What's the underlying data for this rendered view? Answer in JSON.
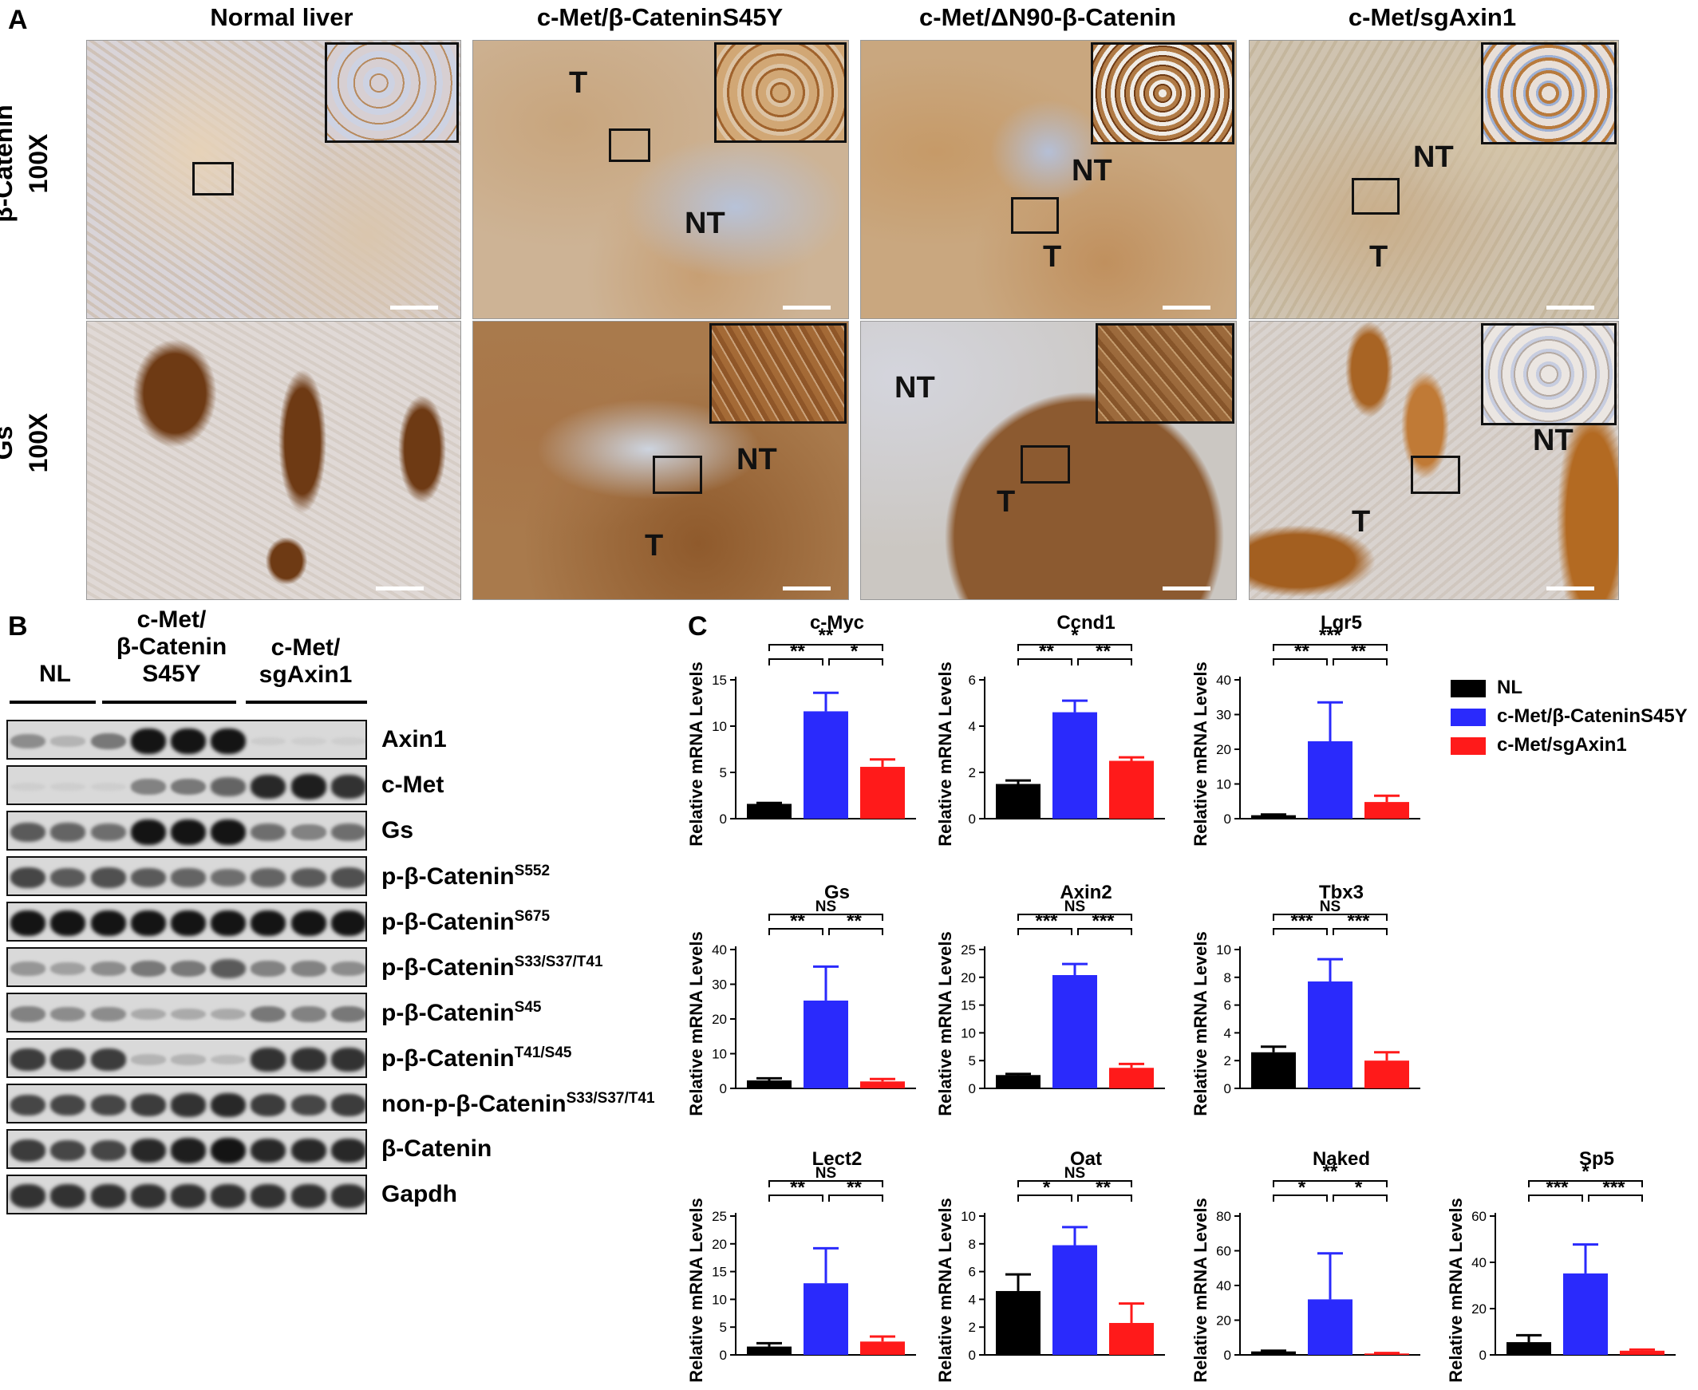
{
  "panel_a": {
    "letter": "A",
    "columns": [
      "Normal liver",
      "c-Met/β-CateninS45Y",
      "c-Met/ΔN90-β-Catenin",
      "c-Met/sgAxin1"
    ],
    "rows": [
      {
        "stain": "β-Catenin",
        "mag": "100X"
      },
      {
        "stain": "Gs",
        "mag": "100X"
      }
    ],
    "region_labels": {
      "r1c2_t": "T",
      "r1c2_nt": "NT",
      "r1c3_nt": "NT",
      "r1c3_t": "T",
      "r1c4_nt": "NT",
      "r1c4_t": "T",
      "r2c2_nt": "NT",
      "r2c2_t": "T",
      "r2c3_nt": "NT",
      "r2c3_t": "T",
      "r2c4_nt": "NT",
      "r2c4_t": "T"
    },
    "colors": {
      "tissue_blue": "#d8dbe6",
      "stain_brown": "#a8662b",
      "dark_brown": "#6e3a14"
    }
  },
  "panel_b": {
    "letter": "B",
    "groups": [
      {
        "label": "NL"
      },
      {
        "label_1": "c-Met/",
        "label_2": "β-Catenin",
        "label_3": "S45Y"
      },
      {
        "label_1": "c-Met/",
        "label_2": "sgAxin1"
      }
    ],
    "blots": [
      {
        "name": "Axin1",
        "sup": "",
        "intensity": [
          0.35,
          0.15,
          0.45,
          0.95,
          0.95,
          0.95,
          0.03,
          0.02,
          0.02
        ]
      },
      {
        "name": "c-Met",
        "sup": "",
        "intensity": [
          0.02,
          0.02,
          0.02,
          0.4,
          0.45,
          0.55,
          0.85,
          0.9,
          0.8
        ]
      },
      {
        "name": "Gs",
        "sup": "",
        "intensity": [
          0.6,
          0.55,
          0.5,
          0.95,
          0.95,
          0.95,
          0.5,
          0.4,
          0.5
        ]
      },
      {
        "name": "p-β-Catenin",
        "sup": "S552",
        "intensity": [
          0.7,
          0.6,
          0.65,
          0.6,
          0.55,
          0.5,
          0.55,
          0.6,
          0.65
        ]
      },
      {
        "name": "p-β-Catenin",
        "sup": "S675",
        "intensity": [
          0.95,
          0.95,
          0.95,
          0.95,
          0.95,
          0.95,
          0.95,
          0.95,
          0.95
        ]
      },
      {
        "name": "p-β-Catenin",
        "sup": "S33/S37/T41",
        "intensity": [
          0.3,
          0.25,
          0.35,
          0.45,
          0.45,
          0.6,
          0.4,
          0.4,
          0.35
        ]
      },
      {
        "name": "p-β-Catenin",
        "sup": "S45",
        "intensity": [
          0.4,
          0.35,
          0.35,
          0.2,
          0.2,
          0.2,
          0.45,
          0.4,
          0.45
        ]
      },
      {
        "name": "p-β-Catenin",
        "sup": "T41/S45",
        "intensity": [
          0.75,
          0.75,
          0.75,
          0.15,
          0.15,
          0.12,
          0.8,
          0.8,
          0.8
        ]
      },
      {
        "name": "non-p-β-Catenin",
        "sup": "S33/S37/T41",
        "intensity": [
          0.7,
          0.7,
          0.7,
          0.75,
          0.8,
          0.85,
          0.75,
          0.7,
          0.75
        ]
      },
      {
        "name": "β-Catenin",
        "sup": "",
        "intensity": [
          0.75,
          0.7,
          0.7,
          0.85,
          0.9,
          0.95,
          0.85,
          0.85,
          0.85
        ]
      },
      {
        "name": "Gapdh",
        "sup": "",
        "intensity": [
          0.8,
          0.8,
          0.8,
          0.8,
          0.8,
          0.8,
          0.8,
          0.8,
          0.8
        ]
      }
    ]
  },
  "panel_c": {
    "letter": "C",
    "ylabel": "Relative mRNA Levels",
    "legend": [
      {
        "label": "NL",
        "color": "#000000"
      },
      {
        "label": "c-Met/β-CateninS45Y",
        "color": "#2a2afc"
      },
      {
        "label": "c-Met/sgAxin1",
        "color": "#ff1a1a"
      }
    ]
  },
  "chart_data": [
    {
      "type": "bar",
      "title": "c-Myc",
      "ylabel": "Relative mRNA Levels",
      "ylim": [
        0,
        15
      ],
      "ticks": [
        0,
        5,
        10,
        15
      ],
      "series": [
        {
          "name": "NL",
          "values": [
            1.6
          ],
          "error": [
            0.1
          ]
        },
        {
          "name": "c-Met/β-CateninS45Y",
          "values": [
            11.6
          ],
          "error": [
            2.0
          ]
        },
        {
          "name": "c-Met/sgAxin1",
          "values": [
            5.6
          ],
          "error": [
            0.8
          ]
        }
      ],
      "significance": {
        "left": "**",
        "right": "*",
        "outer": "**"
      }
    },
    {
      "type": "bar",
      "title": "Ccnd1",
      "ylabel": "Relative mRNA Levels",
      "ylim": [
        0,
        6
      ],
      "ticks": [
        0,
        2,
        4,
        6
      ],
      "series": [
        {
          "name": "NL",
          "values": [
            1.5
          ],
          "error": [
            0.15
          ]
        },
        {
          "name": "c-Met/β-CateninS45Y",
          "values": [
            4.6
          ],
          "error": [
            0.5
          ]
        },
        {
          "name": "c-Met/sgAxin1",
          "values": [
            2.5
          ],
          "error": [
            0.15
          ]
        }
      ],
      "significance": {
        "left": "**",
        "right": "**",
        "outer": "*"
      }
    },
    {
      "type": "bar",
      "title": "Lgr5",
      "ylabel": "Relative mRNA Levels",
      "ylim": [
        0,
        40
      ],
      "ticks": [
        0,
        10,
        20,
        30,
        40
      ],
      "series": [
        {
          "name": "NL",
          "values": [
            1.0
          ],
          "error": [
            0.2
          ]
        },
        {
          "name": "c-Met/β-CateninS45Y",
          "values": [
            22.3
          ],
          "error": [
            11.2
          ]
        },
        {
          "name": "c-Met/sgAxin1",
          "values": [
            4.8
          ],
          "error": [
            1.8
          ]
        }
      ],
      "significance": {
        "left": "**",
        "right": "**",
        "outer": "***"
      }
    },
    {
      "type": "bar",
      "title": "Gs",
      "ylabel": "Relative mRNA Levels",
      "ylim": [
        0,
        40
      ],
      "ticks": [
        0,
        10,
        20,
        30,
        40
      ],
      "series": [
        {
          "name": "NL",
          "values": [
            2.3
          ],
          "error": [
            0.6
          ]
        },
        {
          "name": "c-Met/β-CateninS45Y",
          "values": [
            25.3
          ],
          "error": [
            9.8
          ]
        },
        {
          "name": "c-Met/sgAxin1",
          "values": [
            2.0
          ],
          "error": [
            0.7
          ]
        }
      ],
      "significance": {
        "left": "**",
        "right": "**",
        "outer": "NS"
      }
    },
    {
      "type": "bar",
      "title": "Axin2",
      "ylabel": "Relative mRNA Levels",
      "ylim": [
        0,
        25
      ],
      "ticks": [
        0,
        5,
        10,
        15,
        20,
        25
      ],
      "series": [
        {
          "name": "NL",
          "values": [
            2.4
          ],
          "error": [
            0.2
          ]
        },
        {
          "name": "c-Met/β-CateninS45Y",
          "values": [
            20.4
          ],
          "error": [
            2.0
          ]
        },
        {
          "name": "c-Met/sgAxin1",
          "values": [
            3.7
          ],
          "error": [
            0.7
          ]
        }
      ],
      "significance": {
        "left": "***",
        "right": "***",
        "outer": "NS"
      }
    },
    {
      "type": "bar",
      "title": "Tbx3",
      "ylabel": "Relative mRNA Levels",
      "ylim": [
        0,
        10
      ],
      "ticks": [
        0,
        2,
        4,
        6,
        8,
        10
      ],
      "series": [
        {
          "name": "NL",
          "values": [
            2.6
          ],
          "error": [
            0.4
          ]
        },
        {
          "name": "c-Met/β-CateninS45Y",
          "values": [
            7.7
          ],
          "error": [
            1.6
          ]
        },
        {
          "name": "c-Met/sgAxin1",
          "values": [
            2.0
          ],
          "error": [
            0.6
          ]
        }
      ],
      "significance": {
        "left": "***",
        "right": "***",
        "outer": "NS"
      }
    },
    {
      "type": "bar",
      "title": "Lect2",
      "ylabel": "Relative mRNA Levels",
      "ylim": [
        0,
        25
      ],
      "ticks": [
        0,
        5,
        10,
        15,
        20,
        25
      ],
      "series": [
        {
          "name": "NL",
          "values": [
            1.5
          ],
          "error": [
            0.6
          ]
        },
        {
          "name": "c-Met/β-CateninS45Y",
          "values": [
            12.9
          ],
          "error": [
            6.3
          ]
        },
        {
          "name": "c-Met/sgAxin1",
          "values": [
            2.4
          ],
          "error": [
            0.9
          ]
        }
      ],
      "significance": {
        "left": "**",
        "right": "**",
        "outer": "NS"
      }
    },
    {
      "type": "bar",
      "title": "Oat",
      "ylabel": "Relative mRNA Levels",
      "ylim": [
        0,
        10
      ],
      "ticks": [
        0,
        2,
        4,
        6,
        8,
        10
      ],
      "series": [
        {
          "name": "NL",
          "values": [
            4.6
          ],
          "error": [
            1.2
          ]
        },
        {
          "name": "c-Met/β-CateninS45Y",
          "values": [
            7.9
          ],
          "error": [
            1.3
          ]
        },
        {
          "name": "c-Met/sgAxin1",
          "values": [
            2.3
          ],
          "error": [
            1.4
          ]
        }
      ],
      "significance": {
        "left": "*",
        "right": "**",
        "outer": "NS"
      }
    },
    {
      "type": "bar",
      "title": "Naked",
      "ylabel": "Relative mRNA Levels",
      "ylim": [
        0,
        80
      ],
      "ticks": [
        0,
        20,
        40,
        60,
        80
      ],
      "series": [
        {
          "name": "NL",
          "values": [
            2.0
          ],
          "error": [
            0.4
          ]
        },
        {
          "name": "c-Met/β-CateninS45Y",
          "values": [
            32.0
          ],
          "error": [
            26.5
          ]
        },
        {
          "name": "c-Met/sgAxin1",
          "values": [
            0.8
          ],
          "error": [
            0.3
          ]
        }
      ],
      "significance": {
        "left": "*",
        "right": "*",
        "outer": "**"
      }
    },
    {
      "type": "bar",
      "title": "Sp5",
      "ylabel": "Relative mRNA Levels",
      "ylim": [
        0,
        60
      ],
      "ticks": [
        0,
        20,
        40,
        60
      ],
      "series": [
        {
          "name": "NL",
          "values": [
            5.5
          ],
          "error": [
            3.0
          ]
        },
        {
          "name": "c-Met/β-CateninS45Y",
          "values": [
            35.2
          ],
          "error": [
            12.5
          ]
        },
        {
          "name": "c-Met/sgAxin1",
          "values": [
            1.8
          ],
          "error": [
            0.5
          ]
        }
      ],
      "significance": {
        "left": "***",
        "right": "***",
        "outer": "*"
      }
    }
  ]
}
